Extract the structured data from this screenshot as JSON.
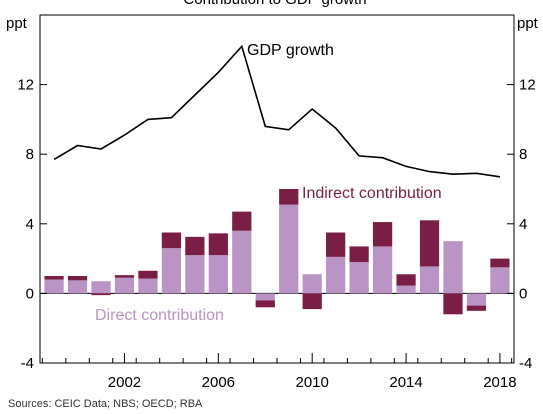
{
  "chart_data": {
    "type": "bar",
    "title": "Contribution to GDP growth",
    "unit_left": "ppt",
    "unit_right": "ppt",
    "y_ticks": [
      -4,
      0,
      4,
      8,
      12
    ],
    "ylim": [
      -4,
      16
    ],
    "x_tick_labels": [
      {
        "year": 2002,
        "label": "2002"
      },
      {
        "year": 2006,
        "label": "2006"
      },
      {
        "year": 2010,
        "label": "2010"
      },
      {
        "year": 2014,
        "label": "2014"
      },
      {
        "year": 2018,
        "label": "2018"
      }
    ],
    "x": [
      1999,
      2000,
      2001,
      2002,
      2003,
      2004,
      2005,
      2006,
      2007,
      2008,
      2009,
      2010,
      2011,
      2012,
      2013,
      2014,
      2015,
      2016,
      2017,
      2018
    ],
    "series": [
      {
        "name": "Direct contribution",
        "kind": "bar",
        "color": "#b994c4",
        "values": [
          0.8,
          0.75,
          0.7,
          0.9,
          0.85,
          2.6,
          2.2,
          2.2,
          3.6,
          -0.4,
          5.1,
          1.1,
          2.1,
          1.8,
          2.7,
          0.45,
          1.55,
          3.0,
          -0.7,
          1.5
        ]
      },
      {
        "name": "Indirect contribution",
        "kind": "bar",
        "color": "#7a1e46",
        "values": [
          0.2,
          0.25,
          -0.1,
          0.15,
          0.45,
          0.9,
          1.05,
          1.25,
          1.1,
          -0.4,
          0.9,
          -0.9,
          1.4,
          0.9,
          1.4,
          0.65,
          2.65,
          -1.2,
          -0.3,
          0.5
        ]
      },
      {
        "name": "GDP growth",
        "kind": "line",
        "color": "#000000",
        "values": [
          7.7,
          8.5,
          8.3,
          9.1,
          10.0,
          10.1,
          11.4,
          12.7,
          14.2,
          9.6,
          9.4,
          10.6,
          9.5,
          7.9,
          7.8,
          7.3,
          7.0,
          6.85,
          6.9,
          6.7
        ]
      }
    ],
    "annotations": {
      "gdp": "GDP growth",
      "indirect": "Indirect contribution",
      "direct": "Direct contribution"
    },
    "source": "Sources: CEIC Data; NBS; OECD; RBA"
  }
}
